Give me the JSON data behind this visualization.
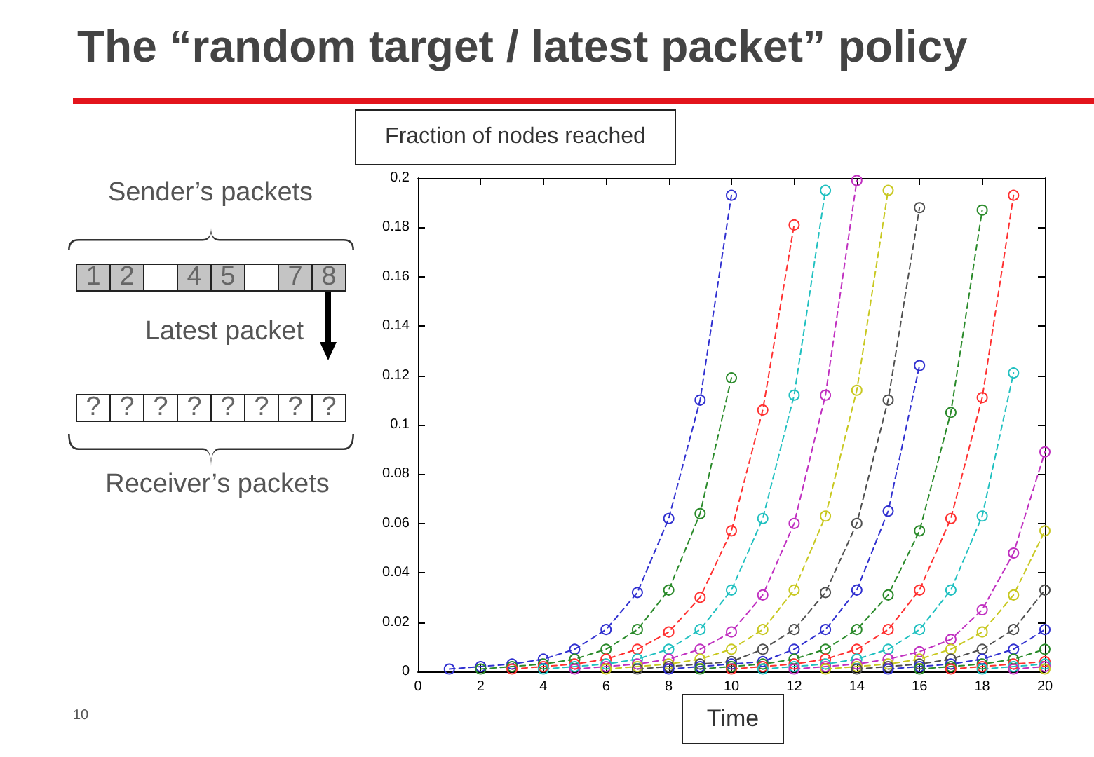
{
  "chart_data": {
    "type": "line",
    "title": "The “random target / latest packet” policy",
    "xlabel": "Time",
    "ylabel": "Fraction of nodes reached",
    "annotations": [
      "Sender’s packets",
      "1",
      "2",
      "4",
      "5",
      "7",
      "8",
      "Latest packet",
      "?",
      "?",
      "?",
      "?",
      "?",
      "?",
      "?",
      "?",
      "Receiver’s packets",
      "10"
    ],
    "xlim": [
      0,
      20
    ],
    "xticks": [
      0,
      2,
      4,
      6,
      8,
      10,
      12,
      14,
      16,
      18,
      20
    ],
    "ylim": [
      0,
      0.2
    ],
    "yticks": [
      0,
      0.02,
      0.04,
      0.06,
      0.08,
      0.1,
      0.12,
      0.14,
      0.16,
      0.18,
      0.2
    ],
    "grid": false,
    "marker": "circle",
    "line_style": "dashed",
    "series": [
      {
        "color": "#3030d0",
        "x": [
          1,
          2,
          3,
          4,
          5,
          6,
          7,
          8,
          9,
          10
        ],
        "values": [
          0.001,
          0.002,
          0.003,
          0.005,
          0.009,
          0.017,
          0.032,
          0.062,
          0.11,
          0.193
        ]
      },
      {
        "color": "#2a8a2a",
        "x": [
          2,
          3,
          4,
          5,
          6,
          7,
          8,
          9,
          10
        ],
        "values": [
          0.001,
          0.002,
          0.003,
          0.005,
          0.009,
          0.017,
          0.033,
          0.064,
          0.119
        ]
      },
      {
        "color": "#ff3030",
        "x": [
          3,
          4,
          5,
          6,
          7,
          8,
          9,
          10,
          11,
          12
        ],
        "values": [
          0.001,
          0.002,
          0.003,
          0.005,
          0.009,
          0.016,
          0.03,
          0.057,
          0.106,
          0.181
        ]
      },
      {
        "color": "#20c0c0",
        "x": [
          4,
          5,
          6,
          7,
          8,
          9,
          10,
          11,
          12,
          13
        ],
        "values": [
          0.001,
          0.002,
          0.003,
          0.005,
          0.009,
          0.017,
          0.033,
          0.062,
          0.112,
          0.195
        ]
      },
      {
        "color": "#c030c0",
        "x": [
          5,
          6,
          7,
          8,
          9,
          10,
          11,
          12,
          13,
          14
        ],
        "values": [
          0.001,
          0.002,
          0.003,
          0.005,
          0.009,
          0.016,
          0.031,
          0.06,
          0.112,
          0.199
        ]
      },
      {
        "color": "#c8c820",
        "x": [
          6,
          7,
          8,
          9,
          10,
          11,
          12,
          13,
          14,
          15
        ],
        "values": [
          0.001,
          0.002,
          0.003,
          0.005,
          0.009,
          0.017,
          0.033,
          0.063,
          0.114,
          0.195
        ]
      },
      {
        "color": "#505050",
        "x": [
          7,
          8,
          9,
          10,
          11,
          12,
          13,
          14,
          15,
          16
        ],
        "values": [
          0.001,
          0.002,
          0.003,
          0.004,
          0.009,
          0.017,
          0.032,
          0.06,
          0.11,
          0.188
        ]
      },
      {
        "color": "#3030d0",
        "x": [
          8,
          9,
          10,
          11,
          12,
          13,
          14,
          15,
          16
        ],
        "values": [
          0.001,
          0.002,
          0.003,
          0.004,
          0.009,
          0.017,
          0.033,
          0.065,
          0.124
        ]
      },
      {
        "color": "#2a8a2a",
        "x": [
          9,
          10,
          11,
          12,
          13,
          14,
          15,
          16,
          17,
          18
        ],
        "values": [
          0.001,
          0.002,
          0.003,
          0.005,
          0.009,
          0.017,
          0.031,
          0.057,
          0.105,
          0.187
        ]
      },
      {
        "color": "#ff3030",
        "x": [
          10,
          11,
          12,
          13,
          14,
          15,
          16,
          17,
          18,
          19
        ],
        "values": [
          0.001,
          0.002,
          0.003,
          0.005,
          0.009,
          0.017,
          0.033,
          0.062,
          0.111,
          0.193
        ]
      },
      {
        "color": "#20c0c0",
        "x": [
          11,
          12,
          13,
          14,
          15,
          16,
          17,
          18,
          19
        ],
        "values": [
          0.001,
          0.002,
          0.003,
          0.005,
          0.009,
          0.017,
          0.033,
          0.063,
          0.121
        ]
      },
      {
        "color": "#c030c0",
        "x": [
          12,
          13,
          14,
          15,
          16,
          17,
          18,
          19,
          20
        ],
        "values": [
          0.001,
          0.002,
          0.003,
          0.005,
          0.008,
          0.013,
          0.025,
          0.048,
          0.089
        ]
      },
      {
        "color": "#c8c820",
        "x": [
          13,
          14,
          15,
          16,
          17,
          18,
          19,
          20
        ],
        "values": [
          0.001,
          0.002,
          0.003,
          0.005,
          0.009,
          0.016,
          0.031,
          0.057
        ]
      },
      {
        "color": "#505050",
        "x": [
          14,
          15,
          16,
          17,
          18,
          19,
          20
        ],
        "values": [
          0.001,
          0.002,
          0.003,
          0.005,
          0.009,
          0.017,
          0.033
        ]
      },
      {
        "color": "#3030d0",
        "x": [
          15,
          16,
          17,
          18,
          19,
          20
        ],
        "values": [
          0.001,
          0.002,
          0.003,
          0.005,
          0.009,
          0.017
        ]
      },
      {
        "color": "#2a8a2a",
        "x": [
          16,
          17,
          18,
          19,
          20
        ],
        "values": [
          0.001,
          0.002,
          0.003,
          0.005,
          0.009
        ]
      },
      {
        "color": "#ff3030",
        "x": [
          17,
          18,
          19,
          20
        ],
        "values": [
          0.001,
          0.002,
          0.003,
          0.004
        ]
      },
      {
        "color": "#20c0c0",
        "x": [
          18,
          19,
          20
        ],
        "values": [
          0.001,
          0.002,
          0.003
        ]
      },
      {
        "color": "#c030c0",
        "x": [
          19,
          20
        ],
        "values": [
          0.001,
          0.002
        ]
      },
      {
        "color": "#c8c820",
        "x": [
          20
        ],
        "values": [
          0.001
        ]
      }
    ]
  }
}
